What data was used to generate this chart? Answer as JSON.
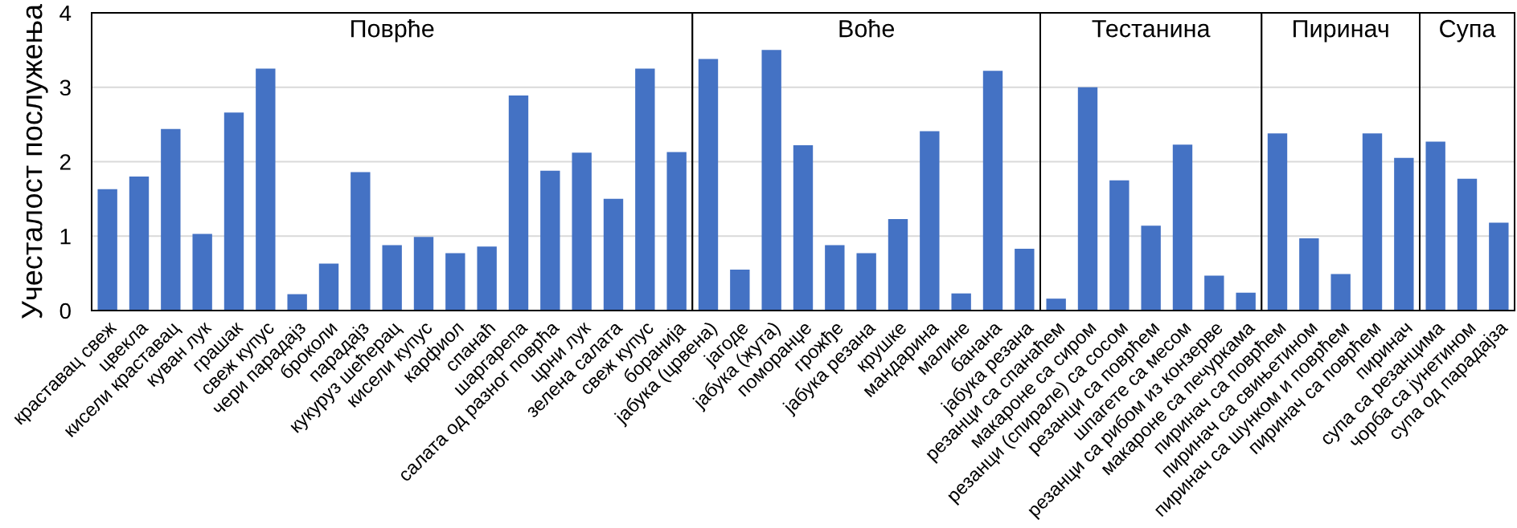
{
  "chart_data": [
    {
      "type": "bar",
      "title": "Поврће",
      "ylabel": "Учесталост послужења",
      "categories": [
        "краставац свеж",
        "цвекла",
        "кисели краставац",
        "куван лук",
        "грашак",
        "свеж купус",
        "чери парадајз",
        "броколи",
        "парадајз",
        "кукуруз шећерац",
        "кисели купус",
        "карфиол",
        "спанаћ",
        "шаргарепа",
        "салата од разног поврћа",
        "црни лук",
        "зелена салата",
        "свеж купус",
        "боранија"
      ],
      "values": [
        1.63,
        1.8,
        2.44,
        1.03,
        2.66,
        3.25,
        0.22,
        0.63,
        1.86,
        0.88,
        0.99,
        0.77,
        0.86,
        2.89,
        1.88,
        2.12,
        1.5,
        3.25,
        2.13
      ],
      "color": "#4472c4",
      "ylim": [
        0,
        4
      ],
      "yticks": [
        0,
        1,
        2,
        3,
        4
      ],
      "grid": "y"
    },
    {
      "type": "bar",
      "title": "Воће",
      "categories": [
        "јабука (црвена)",
        "јагоде",
        "јабука (жута)",
        "поморанџе",
        "грожђе",
        "јабука резана",
        "крушке",
        "мандарина",
        "малине",
        "банана",
        "јабука резана"
      ],
      "values": [
        3.38,
        0.55,
        3.5,
        2.22,
        0.88,
        0.77,
        1.23,
        2.41,
        0.23,
        3.22,
        0.83
      ],
      "color": "#4472c4",
      "ylim": [
        0,
        4
      ],
      "yticks": [
        0,
        1,
        2,
        3,
        4
      ],
      "grid": "y",
      "tick_labels": "x"
    },
    {
      "type": "bar",
      "title": "Тестанина",
      "categories": [
        "резанци са спанаћем",
        "макароне са сиром",
        "резанци (спирале) са сосом",
        "резанци са поврћем",
        "шпагете са месом",
        "резанци са рибом из конзерве",
        "макароне са печуркама"
      ],
      "values": [
        0.16,
        3.0,
        1.75,
        1.14,
        2.23,
        0.47,
        0.24
      ],
      "color": "#4472c4",
      "ylim": [
        0,
        4
      ],
      "yticks": [
        0,
        1,
        2,
        3,
        4
      ],
      "grid": "y",
      "tick_labels": "x"
    },
    {
      "type": "bar",
      "title": "Пиринач",
      "categories": [
        "пиринач са поврћем",
        "пиринач са свињетином",
        "пиринач са шунком и поврћем",
        "пиринач са поврћем",
        "пиринач"
      ],
      "values": [
        2.38,
        0.97,
        0.49,
        2.38,
        2.05
      ],
      "color": "#4472c4",
      "ylim": [
        0,
        4
      ],
      "yticks": [
        0,
        1,
        2,
        3,
        4
      ],
      "grid": "y",
      "tick_labels": "x"
    },
    {
      "type": "bar",
      "title": "Супа",
      "categories": [
        "супа са резанцима",
        "чорба са јунетином",
        "супа од парадајза"
      ],
      "values": [
        2.27,
        1.77,
        1.18
      ],
      "color": "#4472c4",
      "ylim": [
        0,
        4
      ],
      "yticks": [
        0,
        1,
        2,
        3,
        4
      ],
      "grid": "y",
      "tick_labels": "x"
    }
  ]
}
